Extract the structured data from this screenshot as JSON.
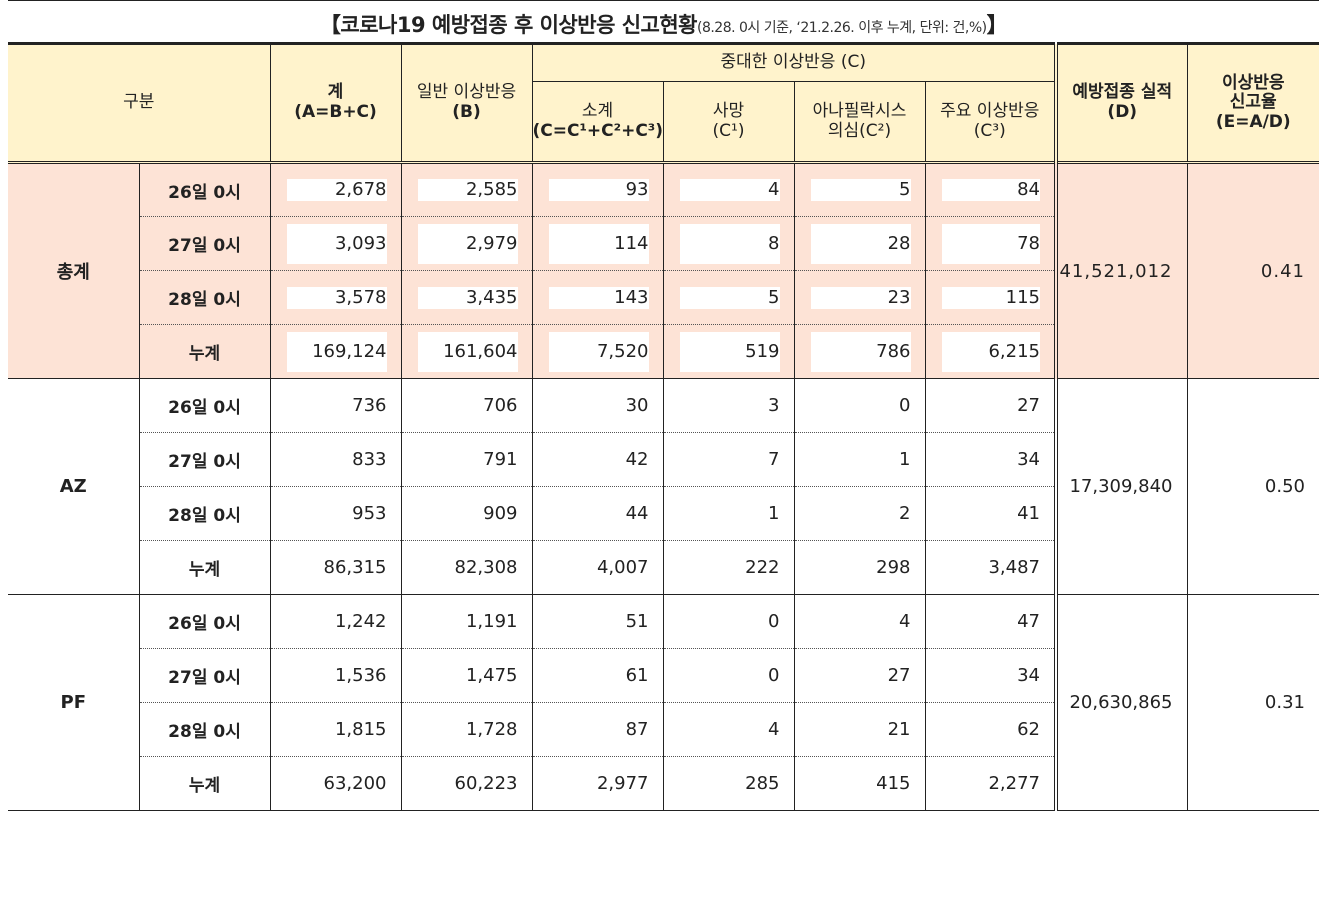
{
  "title": {
    "main": "【코로나19 예방접종 후 이상반응 신고현황",
    "sub": "(8.28. 0시 기준, ‘21.2.26. 이후 누계, 단위: 건,%)",
    "close": "】"
  },
  "headers": {
    "category": "구분",
    "total_line1": "계",
    "total_line2": "(A=B+C)",
    "general_line1": "일반 이상반응",
    "general_line2": "(B)",
    "serious": "중대한 이상반응 (C)",
    "subtotal_line1": "소계",
    "subtotal_line2": "(C=C¹+C²+C³)",
    "death_line1": "사망",
    "death_line2": "(C¹)",
    "anaphylaxis_line1": "아나필락시스",
    "anaphylaxis_line2": "의심(C²)",
    "major_line1": "주요 이상반응",
    "major_line2": "(C³)",
    "vaccinated_line1": "예방접종 실적",
    "vaccinated_line2": "(D)",
    "rate_line1": "이상반응",
    "rate_line2": "신고율",
    "rate_line3": "(E=A/D)"
  },
  "groups": [
    {
      "name": "총계",
      "vaccinated": "41,521,012",
      "rate": "0.41",
      "rows": [
        {
          "date": "26일 0시",
          "total": "2,678",
          "general": "2,585",
          "subtotal": "93",
          "death": "4",
          "anaphylaxis": "5",
          "major": "84"
        },
        {
          "date": "27일 0시",
          "total": "3,093",
          "general": "2,979",
          "subtotal": "114",
          "death": "8",
          "anaphylaxis": "28",
          "major": "78"
        },
        {
          "date": "28일 0시",
          "total": "3,578",
          "general": "3,435",
          "subtotal": "143",
          "death": "5",
          "anaphylaxis": "23",
          "major": "115"
        },
        {
          "date": "누계",
          "total": "169,124",
          "general": "161,604",
          "subtotal": "7,520",
          "death": "519",
          "anaphylaxis": "786",
          "major": "6,215"
        }
      ]
    },
    {
      "name": "AZ",
      "vaccinated": "17,309,840",
      "rate": "0.50",
      "rows": [
        {
          "date": "26일 0시",
          "total": "736",
          "general": "706",
          "subtotal": "30",
          "death": "3",
          "anaphylaxis": "0",
          "major": "27"
        },
        {
          "date": "27일 0시",
          "total": "833",
          "general": "791",
          "subtotal": "42",
          "death": "7",
          "anaphylaxis": "1",
          "major": "34"
        },
        {
          "date": "28일 0시",
          "total": "953",
          "general": "909",
          "subtotal": "44",
          "death": "1",
          "anaphylaxis": "2",
          "major": "41"
        },
        {
          "date": "누계",
          "total": "86,315",
          "general": "82,308",
          "subtotal": "4,007",
          "death": "222",
          "anaphylaxis": "298",
          "major": "3,487"
        }
      ]
    },
    {
      "name": "PF",
      "vaccinated": "20,630,865",
      "rate": "0.31",
      "rows": [
        {
          "date": "26일 0시",
          "total": "1,242",
          "general": "1,191",
          "subtotal": "51",
          "death": "0",
          "anaphylaxis": "4",
          "major": "47"
        },
        {
          "date": "27일 0시",
          "total": "1,536",
          "general": "1,475",
          "subtotal": "61",
          "death": "0",
          "anaphylaxis": "27",
          "major": "34"
        },
        {
          "date": "28일 0시",
          "total": "1,815",
          "general": "1,728",
          "subtotal": "87",
          "death": "4",
          "anaphylaxis": "21",
          "major": "62"
        },
        {
          "date": "누계",
          "total": "63,200",
          "general": "60,223",
          "subtotal": "2,977",
          "death": "285",
          "anaphylaxis": "415",
          "major": "2,277"
        }
      ]
    }
  ]
}
